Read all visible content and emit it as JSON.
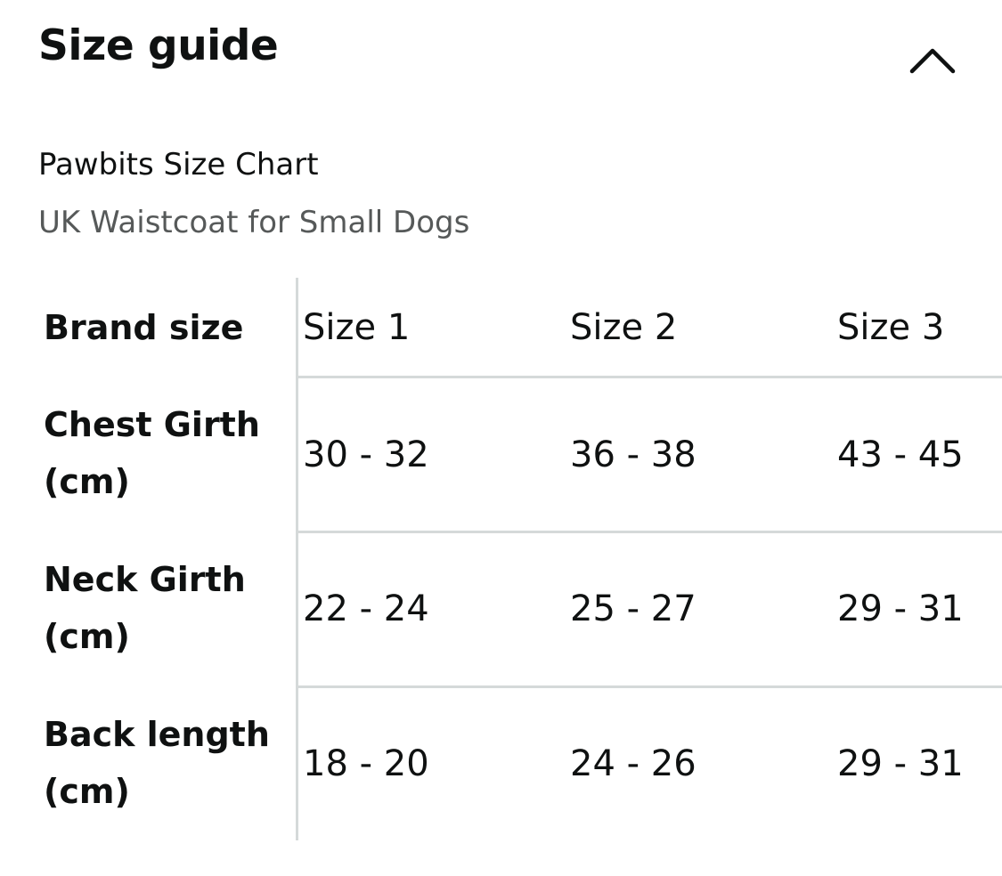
{
  "header": {
    "title": "Size guide",
    "toggle_icon": "chevron-up-icon"
  },
  "chart": {
    "title": "Pawbits Size Chart",
    "subtitle": "UK Waistcoat for Small Dogs"
  },
  "table": {
    "header_label": "Brand size",
    "columns": [
      "Size 1",
      "Size 2",
      "Size 3"
    ],
    "rows": [
      {
        "label_line1": "Chest Girth",
        "label_line2": "(cm)",
        "values": [
          "30 - 32",
          "36 - 38",
          "43 - 45"
        ]
      },
      {
        "label_line1": "Neck Girth",
        "label_line2": "(cm)",
        "values": [
          "22 - 24",
          "25 - 27",
          "29 - 31"
        ]
      },
      {
        "label_line1": "Back length",
        "label_line2": "(cm)",
        "values": [
          "18 - 20",
          "24 - 26",
          "29 - 31"
        ]
      }
    ]
  },
  "colors": {
    "text": "#0f1111",
    "secondary_text": "#565959",
    "divider": "#d5d9d9"
  }
}
